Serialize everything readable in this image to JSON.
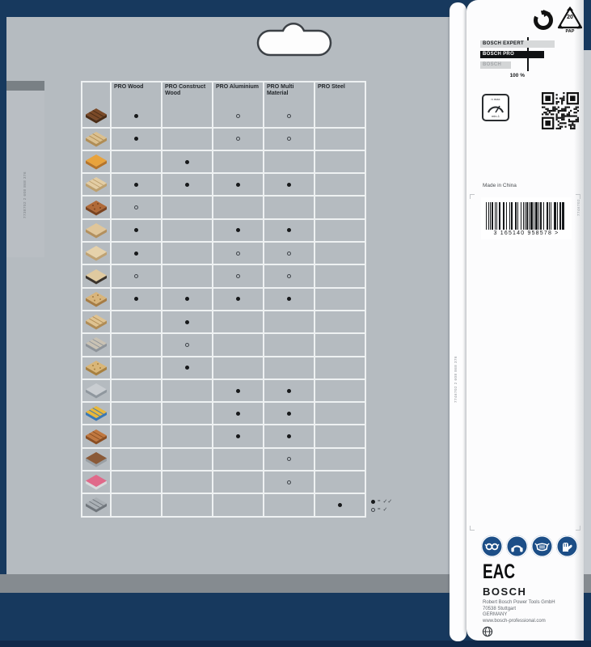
{
  "packaging": {
    "flap_code": "7738702   2 608 868 376",
    "spine_code": "7746702   2 608 868 376",
    "panel_side_code": "7746702"
  },
  "table": {
    "columns": [
      "PRO Wood",
      "PRO Construct Wood",
      "PRO Aluminium",
      "PRO Multi Material",
      "PRO Steel"
    ],
    "rows": [
      {
        "material": "hardwood-planks",
        "icon": {
          "top": "#7a4a28",
          "side": "#4a2c16",
          "pattern": "stripes"
        },
        "dots": [
          "filled",
          "",
          "open",
          "open",
          ""
        ]
      },
      {
        "material": "softwood-planks",
        "icon": {
          "top": "#dbc08f",
          "side": "#b08d55",
          "pattern": "stripes"
        },
        "dots": [
          "filled",
          "",
          "open",
          "open",
          ""
        ]
      },
      {
        "material": "coated-chipboard",
        "icon": {
          "top": "#e8a33d",
          "side": "#b5742a",
          "pattern": "solid"
        },
        "dots": [
          "",
          "filled",
          "",
          "",
          ""
        ]
      },
      {
        "material": "plywood-boards",
        "icon": {
          "top": "#e3cda4",
          "side": "#bda06e",
          "pattern": "stripes"
        },
        "dots": [
          "filled",
          "filled",
          "filled",
          "filled",
          ""
        ]
      },
      {
        "material": "exotic-hardwood",
        "icon": {
          "top": "#b06a38",
          "side": "#7a431f",
          "pattern": "speckle"
        },
        "dots": [
          "open",
          "",
          "",
          "",
          ""
        ]
      },
      {
        "material": "solid-wood-panel",
        "icon": {
          "top": "#e0c69a",
          "side": "#b3905d",
          "pattern": "solid"
        },
        "dots": [
          "filled",
          "",
          "filled",
          "filled",
          ""
        ]
      },
      {
        "material": "glued-laminated-wood",
        "icon": {
          "top": "#e6d2ab",
          "side": "#bfa273",
          "pattern": "solid"
        },
        "dots": [
          "filled",
          "",
          "open",
          "open",
          ""
        ]
      },
      {
        "material": "veneered-board",
        "icon": {
          "top": "#e0caa0",
          "side": "#3a332c",
          "pattern": "solid"
        },
        "dots": [
          "open",
          "",
          "open",
          "open",
          ""
        ]
      },
      {
        "material": "chipboard",
        "icon": {
          "top": "#d8b57c",
          "side": "#a67c44",
          "pattern": "speckle"
        },
        "dots": [
          "filled",
          "filled",
          "filled",
          "filled",
          ""
        ]
      },
      {
        "material": "construction-timber",
        "icon": {
          "top": "#dfc391",
          "side": "#b08c55",
          "pattern": "stripes"
        },
        "dots": [
          "",
          "filled",
          "",
          "",
          ""
        ]
      },
      {
        "material": "wood-with-nails",
        "icon": {
          "top": "#c9c2b4",
          "side": "#8e949a",
          "pattern": "stripes"
        },
        "dots": [
          "",
          "open",
          "",
          "",
          ""
        ]
      },
      {
        "material": "osb-board",
        "icon": {
          "top": "#d9b678",
          "side": "#a8803f",
          "pattern": "speckle"
        },
        "dots": [
          "",
          "filled",
          "",
          "",
          ""
        ]
      },
      {
        "material": "aluminium-profile",
        "icon": {
          "top": "#c9cdd1",
          "side": "#8f979e",
          "pattern": "solid"
        },
        "dots": [
          "",
          "",
          "filled",
          "filled",
          ""
        ]
      },
      {
        "material": "plastic-profiles",
        "icon": {
          "top": "#e8b73a",
          "side": "#3a78b5",
          "pattern": "stripes"
        },
        "dots": [
          "",
          "",
          "filled",
          "filled",
          ""
        ]
      },
      {
        "material": "copper-pipes",
        "icon": {
          "top": "#c07840",
          "side": "#8a4e22",
          "pattern": "stripes"
        },
        "dots": [
          "",
          "",
          "filled",
          "filled",
          ""
        ]
      },
      {
        "material": "laminate-flooring",
        "icon": {
          "top": "#8a5a38",
          "side": "#9aa0a5",
          "pattern": "solid"
        },
        "dots": [
          "",
          "",
          "",
          "open",
          ""
        ]
      },
      {
        "material": "acrylic-sheet",
        "icon": {
          "top": "#e06a8a",
          "side": "#d8dadc",
          "pattern": "solid"
        },
        "dots": [
          "",
          "",
          "",
          "open",
          ""
        ]
      },
      {
        "material": "steel-profile",
        "icon": {
          "top": "#aab0b5",
          "side": "#70767c",
          "pattern": "stripes"
        },
        "dots": [
          "",
          "",
          "",
          "",
          "filled"
        ]
      }
    ],
    "legend": [
      {
        "symbol": "filled",
        "label": "✓✓"
      },
      {
        "symbol": "open",
        "label": "✓"
      }
    ]
  },
  "panel": {
    "brand_bars": [
      {
        "label": "BOSCH EXPERT",
        "style": "light"
      },
      {
        "label": "BOSCH PRO",
        "style": "dark"
      },
      {
        "label": "BOSCH",
        "style": "muted"
      }
    ],
    "percent_label": "100 %",
    "recycle_code": "20",
    "recycle_material": "PAP",
    "gauge_top": "n max",
    "gauge_bottom": "min-1",
    "made_in": "Made in China",
    "barcode_text": "3  165140 958578 >",
    "eac": "EAC",
    "bosch_logo": "BOSCH",
    "address": [
      "Robert Bosch Power Tools GmbH",
      "70538 Stuttgart",
      "GERMANY",
      "www.bosch-professional.com"
    ],
    "colors": {
      "navy": "#17395e",
      "safety_blue": "#1c4e87",
      "card_gray": "#b5bbc0"
    }
  }
}
